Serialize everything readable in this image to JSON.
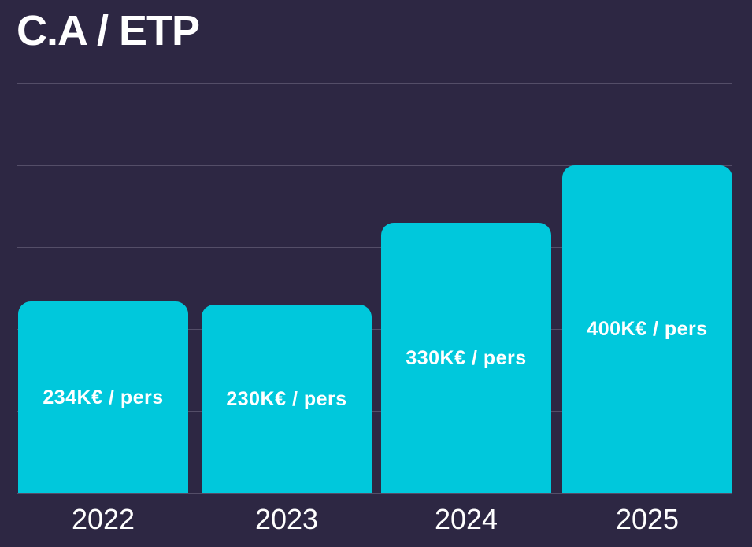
{
  "colors": {
    "background": "#2d2743",
    "bar": "#00c8dc",
    "gridline": "#544e68",
    "text": "#ffffff"
  },
  "chart_data": {
    "type": "bar",
    "title": "C.A / ETP",
    "categories": [
      "2022",
      "2023",
      "2024",
      "2025"
    ],
    "values": [
      234,
      230,
      330,
      400
    ],
    "bar_labels": [
      "234K€  / pers",
      "230K€ / pers",
      "330K€ / pers",
      "400K€ / pers"
    ],
    "unit": "K€ / pers",
    "xlabel": "",
    "ylabel": "",
    "ylim": [
      0,
      500
    ],
    "gridline_step": 100,
    "grid": true,
    "legend": false,
    "tick_labels_shown": false
  }
}
